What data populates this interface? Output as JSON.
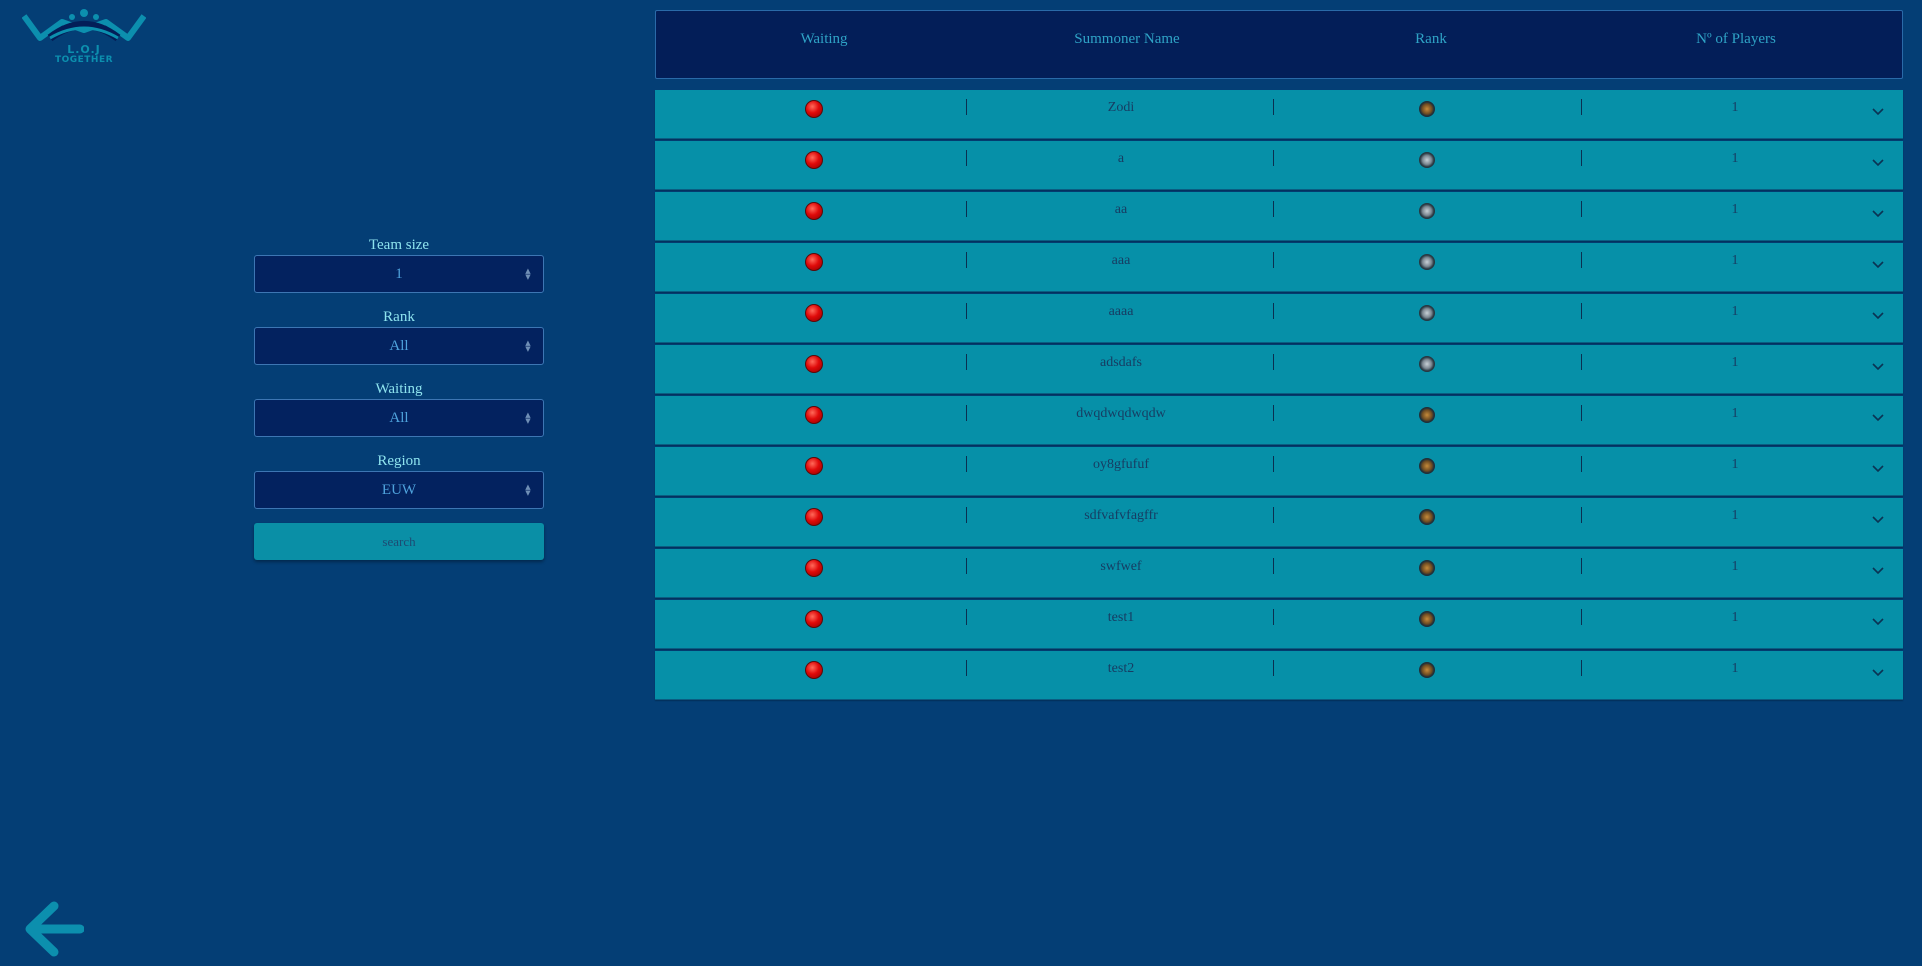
{
  "logo": {
    "line1": "L.O.J",
    "line2": "TOGETHER"
  },
  "filters": {
    "team_size": {
      "label": "Team size",
      "value": "1"
    },
    "rank": {
      "label": "Rank",
      "value": "All"
    },
    "waiting": {
      "label": "Waiting",
      "value": "All"
    },
    "region": {
      "label": "Region",
      "value": "EUW"
    },
    "search_label": "search"
  },
  "table": {
    "headers": [
      "Waiting",
      "Summoner Name",
      "Rank",
      "Nº of Players"
    ],
    "rows": [
      {
        "name": "Zodi",
        "players": "1",
        "rank_icon": "gold-rank-icon"
      },
      {
        "name": "a",
        "players": "1",
        "rank_icon": "silver-rank-icon"
      },
      {
        "name": "aa",
        "players": "1",
        "rank_icon": "silver-rank-icon"
      },
      {
        "name": "aaa",
        "players": "1",
        "rank_icon": "silver-rank-icon"
      },
      {
        "name": "aaaa",
        "players": "1",
        "rank_icon": "silver-rank-icon"
      },
      {
        "name": "adsdafs",
        "players": "1",
        "rank_icon": "silver-rank-icon"
      },
      {
        "name": "dwqdwqdwqdw",
        "players": "1",
        "rank_icon": "bronze-rank-icon"
      },
      {
        "name": "oy8gfufuf",
        "players": "1",
        "rank_icon": "bronze-rank-icon"
      },
      {
        "name": "sdfvafvfagffr",
        "players": "1",
        "rank_icon": "bronze-rank-icon"
      },
      {
        "name": "swfwef",
        "players": "1",
        "rank_icon": "bronze-rank-icon"
      },
      {
        "name": "test1",
        "players": "1",
        "rank_icon": "gold-rank-icon"
      },
      {
        "name": "test2",
        "players": "1",
        "rank_icon": "gold-rank-icon"
      }
    ]
  },
  "icons": {
    "waiting_status": "red-dot-icon",
    "expand": "chevron-down-icon",
    "back": "back-arrow-icon"
  },
  "colors": {
    "background": "#043e75",
    "header_bg": "#031e58",
    "row_bg": "#0690a8",
    "accent": "#0a8fa6",
    "status_red": "#e00a0a"
  }
}
